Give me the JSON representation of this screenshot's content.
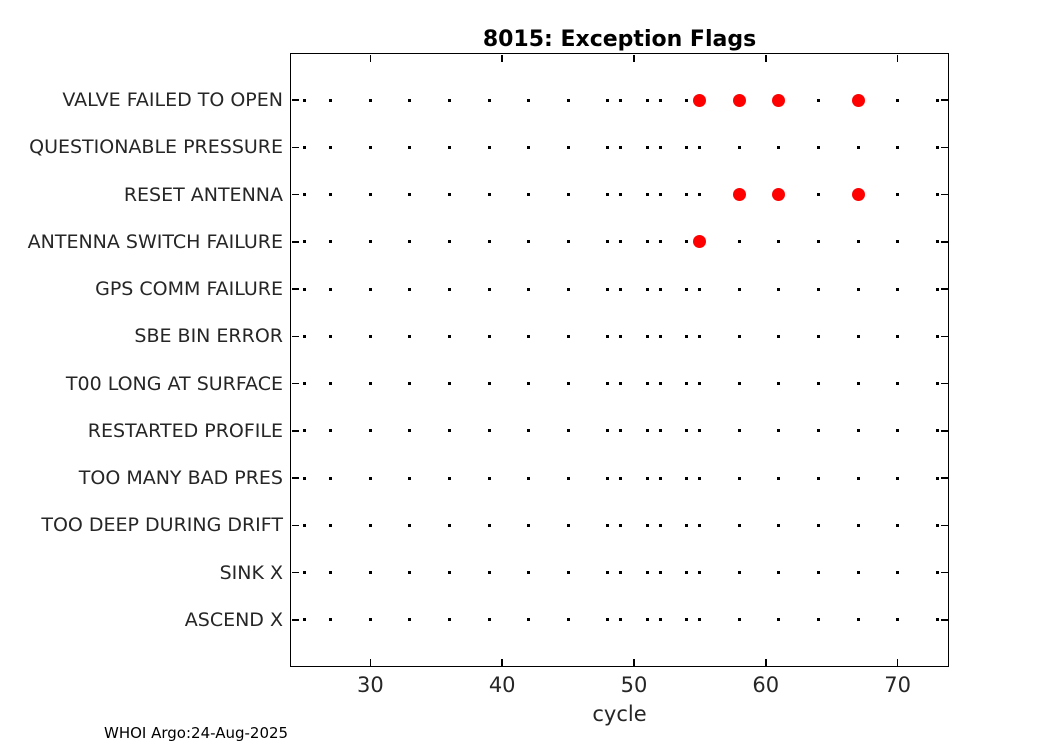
{
  "chart_data": {
    "type": "scatter",
    "title": "8015: Exception Flags",
    "xlabel": "cycle",
    "ylabel": "",
    "xlim": [
      23.9,
      73.9
    ],
    "ylim": [
      0,
      13
    ],
    "xticks": [
      30,
      40,
      50,
      60,
      70
    ],
    "grid": false,
    "legend": "none",
    "rows": [
      {
        "label": "VALVE FAILED TO OPEN",
        "flagged_cycles": [
          55,
          58,
          61,
          67
        ]
      },
      {
        "label": "QUESTIONABLE PRESSURE",
        "flagged_cycles": []
      },
      {
        "label": "RESET ANTENNA",
        "flagged_cycles": [
          58,
          61,
          67
        ]
      },
      {
        "label": "ANTENNA SWITCH FAILURE",
        "flagged_cycles": [
          55
        ]
      },
      {
        "label": "GPS COMM FAILURE",
        "flagged_cycles": []
      },
      {
        "label": "SBE BIN ERROR",
        "flagged_cycles": []
      },
      {
        "label": "T00 LONG AT SURFACE",
        "flagged_cycles": []
      },
      {
        "label": "RESTARTED PROFILE",
        "flagged_cycles": []
      },
      {
        "label": "TOO MANY BAD PRES",
        "flagged_cycles": []
      },
      {
        "label": "TOO DEEP DURING DRIFT",
        "flagged_cycles": []
      },
      {
        "label": "SINK X",
        "flagged_cycles": []
      },
      {
        "label": "ASCEND X",
        "flagged_cycles": []
      }
    ],
    "observed_cycles": [
      25,
      27,
      30,
      33,
      36,
      39,
      42,
      45,
      48,
      49,
      51,
      52,
      54,
      55,
      58,
      61,
      64,
      67,
      70,
      73
    ],
    "colors": {
      "flag_marker": "#ff0000",
      "cycle_marker": "#000000",
      "axis": "#000000",
      "tick_label": "#262626"
    }
  },
  "footer": {
    "text": "WHOI Argo:24-Aug-2025"
  }
}
